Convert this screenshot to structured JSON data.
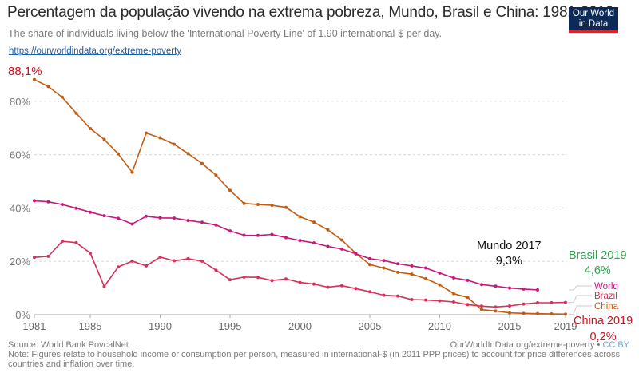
{
  "header": {
    "title": "Percentagem da população vivendo na extrema pobreza, Mundo, Brasil e China: 1981-2019",
    "subtitle": "The share of individuals living below the 'International Poverty Line' of 1.90 international-$ per day.",
    "link": "https://ourworldindata.org/extreme-poverty",
    "logo_line1": "Our World",
    "logo_line2": "in Data"
  },
  "footer": {
    "source": "Source: World Bank PovcalNet",
    "note": "Note: Figures relate to household income or consumption per person, measured in international-$ (in 2011 PPP prices) to account for price differences across countries and inflation over time.",
    "credit": "OurWorldInData.org/extreme-poverty",
    "license": "CC BY",
    "bullet": "•"
  },
  "annotations": {
    "china_start": "88,1%",
    "world_end_title": "Mundo 2017",
    "world_end_value": "9,3%",
    "brazil_end_title": "Brasil 2019",
    "brazil_end_value": "4,6%",
    "china_end_title": "China 2019",
    "china_end_value": "0,2%"
  },
  "colors": {
    "china": "#c35c11",
    "world": "#c8177a",
    "brazil": "#d6305b",
    "annot_red": "#d0101e",
    "annot_green": "#2fa34f",
    "annot_black": "#111111",
    "grid": "#d8d8d8",
    "axis_text": "#7a7a7a"
  },
  "chart_data": {
    "type": "line",
    "title": "Percentagem da população vivendo na extrema pobreza, Mundo, Brasil e China: 1981-2019",
    "xlabel": "",
    "ylabel": "",
    "xlim": [
      1981,
      2019
    ],
    "ylim": [
      0,
      90
    ],
    "x_ticks": [
      1981,
      1985,
      1990,
      1995,
      2000,
      2005,
      2010,
      2015,
      2019
    ],
    "y_ticks": [
      0,
      20,
      40,
      60,
      80
    ],
    "y_tick_labels": [
      "0%",
      "20%",
      "40%",
      "60%",
      "80%"
    ],
    "grid": true,
    "legend": "right-end labels",
    "series": [
      {
        "name": "World",
        "color_key": "world",
        "x": [
          1981,
          1982,
          1983,
          1984,
          1985,
          1986,
          1987,
          1988,
          1989,
          1990,
          1991,
          1992,
          1993,
          1994,
          1995,
          1996,
          1997,
          1998,
          1999,
          2000,
          2001,
          2002,
          2003,
          2004,
          2005,
          2006,
          2007,
          2008,
          2009,
          2010,
          2011,
          2012,
          2013,
          2014,
          2015,
          2016,
          2017
        ],
        "values": [
          42.7,
          42.3,
          41.3,
          39.9,
          38.4,
          37.1,
          36.1,
          34.0,
          36.9,
          36.3,
          36.2,
          35.3,
          34.6,
          33.6,
          31.4,
          29.8,
          29.7,
          30.1,
          28.9,
          27.8,
          26.9,
          25.6,
          24.6,
          22.8,
          21.0,
          20.3,
          19.1,
          18.3,
          17.5,
          15.6,
          13.8,
          12.9,
          11.3,
          10.7,
          10.0,
          9.6,
          9.3
        ]
      },
      {
        "name": "Brazil",
        "color_key": "brazil",
        "x": [
          1981,
          1982,
          1983,
          1984,
          1985,
          1986,
          1987,
          1988,
          1989,
          1990,
          1991,
          1992,
          1993,
          1994,
          1995,
          1996,
          1997,
          1998,
          1999,
          2000,
          2001,
          2002,
          2003,
          2004,
          2005,
          2006,
          2007,
          2008,
          2009,
          2010,
          2011,
          2012,
          2013,
          2014,
          2015,
          2016,
          2017,
          2018,
          2019
        ],
        "values": [
          21.5,
          21.9,
          27.5,
          27.0,
          23.1,
          10.6,
          17.9,
          20.1,
          18.3,
          21.6,
          20.2,
          21.0,
          20.1,
          16.7,
          13.1,
          14.1,
          14.0,
          12.8,
          13.4,
          12.1,
          11.5,
          10.3,
          10.9,
          9.8,
          8.6,
          7.3,
          7.0,
          5.7,
          5.5,
          5.2,
          4.8,
          3.8,
          3.2,
          2.9,
          3.3,
          4.0,
          4.5,
          4.5,
          4.6
        ]
      },
      {
        "name": "China",
        "color_key": "china",
        "x": [
          1981,
          1982,
          1983,
          1984,
          1985,
          1986,
          1987,
          1988,
          1989,
          1990,
          1991,
          1992,
          1993,
          1994,
          1995,
          1996,
          1997,
          1998,
          1999,
          2000,
          2001,
          2002,
          2003,
          2004,
          2005,
          2006,
          2007,
          2008,
          2009,
          2010,
          2011,
          2012,
          2013,
          2014,
          2015,
          2016,
          2017,
          2018,
          2019
        ],
        "values": [
          88.1,
          85.5,
          81.5,
          75.5,
          69.8,
          65.7,
          60.3,
          53.4,
          68.1,
          66.3,
          63.9,
          60.4,
          56.7,
          52.3,
          46.6,
          41.7,
          41.3,
          41.0,
          40.2,
          36.7,
          34.7,
          31.8,
          28.0,
          23.0,
          18.8,
          17.5,
          15.9,
          15.2,
          13.5,
          11.2,
          7.9,
          6.5,
          1.9,
          1.4,
          0.7,
          0.5,
          0.4,
          0.3,
          0.2
        ]
      }
    ]
  }
}
